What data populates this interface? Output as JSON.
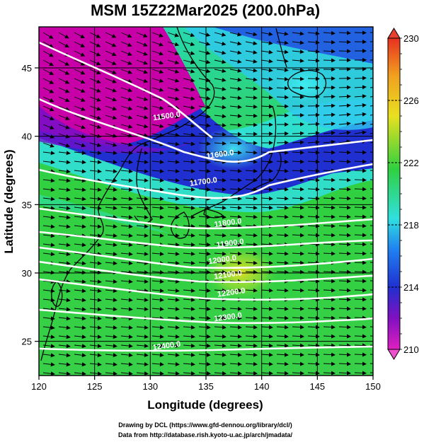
{
  "title": "MSM 15Z22Mar2025 (200.0hPa)",
  "xlabel": "Longitude (degrees)",
  "ylabel": "Latitude  (degrees)",
  "credits": [
    "Drawing by DCL (https://www.gfd-dennou.org/library/dcl/)",
    "Data from http://database.rish.kyoto-u.ac.jp/arch/jmadata/"
  ],
  "colors": {
    "low": "#c000a0",
    "mid_blue": "#2030d0",
    "cyan": "#30e0e0",
    "green": "#30d040",
    "yellow": "#e8e020",
    "contour": "#ffffff",
    "arrow": "#000000"
  },
  "map_data": {
    "lon_range": [
      120,
      150
    ],
    "lat_range": [
      22.5,
      48
    ],
    "x_ticks": [
      120,
      125,
      130,
      135,
      140,
      145,
      150
    ],
    "y_ticks": [
      25,
      30,
      35,
      40,
      45
    ],
    "x_tick_labels": [
      "120",
      "125",
      "130",
      "135",
      "140",
      "145",
      "150"
    ],
    "y_tick_labels": [
      "25",
      "30",
      "35",
      "40",
      "45"
    ],
    "contours": [
      {
        "label": "11500.0",
        "label_lon": 131.5,
        "label_lat": 41.3
      },
      {
        "label": "11600.0",
        "label_lon": 136.3,
        "label_lat": 38.5
      },
      {
        "label": "11700.0",
        "label_lon": 134.8,
        "label_lat": 36.5
      },
      {
        "label": "11800.0",
        "label_lon": 137.0,
        "label_lat": 33.5
      },
      {
        "label": "11900.0",
        "label_lon": 137.2,
        "label_lat": 32.0
      },
      {
        "label": "12000.0",
        "label_lon": 136.5,
        "label_lat": 30.8
      },
      {
        "label": "12100.0",
        "label_lon": 137.0,
        "label_lat": 29.7
      },
      {
        "label": "12200.0",
        "label_lon": 137.3,
        "label_lat": 28.4
      },
      {
        "label": "12300.0",
        "label_lon": 137.0,
        "label_lat": 26.6
      },
      {
        "label": "12400.0",
        "label_lon": 131.5,
        "label_lat": 24.5
      }
    ]
  },
  "colorbar": {
    "min": 210,
    "max": 230,
    "tick_labels": [
      "230",
      "226",
      "222",
      "218",
      "214",
      "210"
    ]
  }
}
